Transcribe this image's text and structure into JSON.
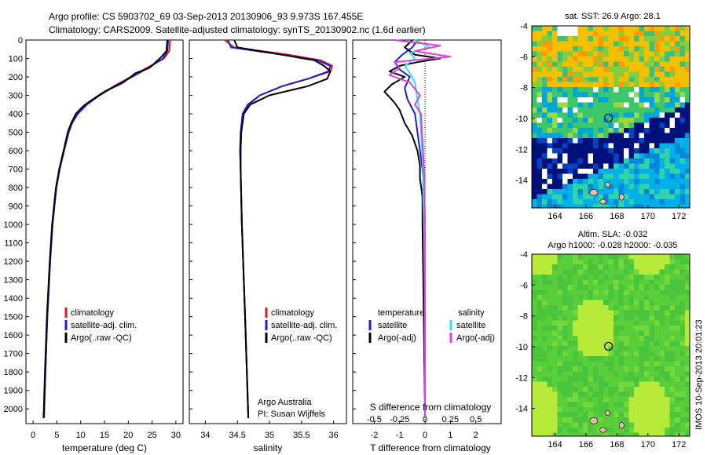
{
  "figure": {
    "title_line1": "Argo profile: CS 5903702_69 03-Sep-2013 20130906_93 9.973S 167.455E",
    "title_line2": "Climatology: CARS2009. Satellite-adjusted climatology: synTS_20130902.nc (1.6d earlier)",
    "credit_line1": "Argo Australia",
    "credit_line2": "PI: Susan Wijffels",
    "side_stamp": "IMOS 10-Sep-2013 20:01:23"
  },
  "colors": {
    "climatology": "#e31a1c",
    "satellite": "#1f1fd0",
    "argo": "#000000",
    "salinity_satellite": "#33e0e8",
    "salinity_argo": "#e040e0",
    "map_land": "#f0b8a8"
  },
  "chart_data": [
    {
      "type": "line",
      "id": "temperature",
      "xlabel": "temperature (deg C)",
      "ylabel": "",
      "xlim": [
        -1.5,
        31.5
      ],
      "ylim": [
        2080,
        0
      ],
      "xticks": [
        0,
        5,
        10,
        15,
        20,
        25,
        30
      ],
      "yticks": [
        0,
        100,
        200,
        300,
        400,
        500,
        600,
        700,
        800,
        900,
        1000,
        1100,
        1200,
        1300,
        1400,
        1500,
        1600,
        1700,
        1800,
        1900,
        2000
      ],
      "legend": [
        "climatology",
        "satellite-adj. clim.",
        "Argo(..raw -QC)"
      ],
      "legend_position": "lower-center",
      "series": [
        {
          "name": "climatology",
          "color": "#e31a1c",
          "depth": [
            0,
            60,
            100,
            150,
            200,
            250,
            300,
            350,
            400,
            450,
            500,
            600,
            700,
            800,
            1000,
            1200,
            1500,
            1800,
            2050
          ],
          "values": [
            28.8,
            28.6,
            27.5,
            24.0,
            20.5,
            17.0,
            13.8,
            11.2,
            9.3,
            8.2,
            7.5,
            6.5,
            5.6,
            4.9,
            4.1,
            3.6,
            3.0,
            2.6,
            2.3
          ]
        },
        {
          "name": "satellite-adj. clim.",
          "color": "#1f1fd0",
          "depth": [
            0,
            60,
            100,
            150,
            200,
            250,
            300,
            350,
            400,
            450,
            500,
            600,
            700,
            800,
            1000,
            1200,
            1500,
            1800,
            2050
          ],
          "values": [
            28.4,
            28.2,
            27.3,
            24.3,
            20.8,
            17.2,
            14.0,
            11.3,
            9.4,
            8.2,
            7.5,
            6.5,
            5.6,
            4.9,
            4.1,
            3.6,
            3.0,
            2.6,
            2.3
          ]
        },
        {
          "name": "Argo(..raw -QC)",
          "color": "#000000",
          "depth": [
            0,
            60,
            90,
            150,
            180,
            230,
            280,
            340,
            360,
            400,
            450,
            500,
            600,
            700,
            800,
            1000,
            1200,
            1500,
            1800,
            2050
          ],
          "values": [
            28.2,
            28.0,
            27.0,
            24.5,
            21.5,
            19.0,
            15.0,
            11.5,
            10.5,
            9.0,
            8.0,
            7.3,
            6.4,
            5.5,
            4.8,
            4.0,
            3.5,
            2.9,
            2.5,
            2.2
          ]
        }
      ]
    },
    {
      "type": "line",
      "id": "salinity",
      "xlabel": "salinity",
      "ylabel": "",
      "xlim": [
        33.75,
        36.2
      ],
      "ylim": [
        2080,
        0
      ],
      "xticks": [
        34,
        34.5,
        35,
        35.5,
        36
      ],
      "legend": [
        "climatology",
        "satellite-adj. clim.",
        "Argo(..raw -QC)"
      ],
      "legend_position": "lower-center",
      "series": [
        {
          "name": "climatology",
          "color": "#e31a1c",
          "depth": [
            0,
            40,
            80,
            110,
            140,
            170,
            210,
            250,
            300,
            350,
            400,
            500,
            600,
            700,
            1000,
            1500,
            2050
          ],
          "values": [
            34.3,
            34.45,
            35.3,
            35.8,
            35.98,
            35.95,
            35.6,
            35.2,
            34.85,
            34.68,
            34.6,
            34.56,
            34.55,
            34.55,
            34.57,
            34.62,
            34.67
          ]
        },
        {
          "name": "satellite-adj. clim.",
          "color": "#1f1fd0",
          "depth": [
            0,
            40,
            80,
            110,
            140,
            170,
            210,
            250,
            300,
            350,
            400,
            500,
            600,
            700,
            1000,
            1500,
            2050
          ],
          "values": [
            34.35,
            34.4,
            35.2,
            35.75,
            35.95,
            35.92,
            35.6,
            35.2,
            34.85,
            34.66,
            34.58,
            34.55,
            34.54,
            34.55,
            34.57,
            34.62,
            34.67
          ]
        },
        {
          "name": "Argo(..raw -QC)",
          "color": "#000000",
          "depth": [
            0,
            40,
            80,
            110,
            140,
            170,
            210,
            250,
            300,
            350,
            400,
            500,
            600,
            700,
            1000,
            1500,
            2050
          ],
          "values": [
            34.45,
            34.5,
            35.2,
            35.7,
            35.85,
            35.95,
            35.9,
            35.6,
            35.0,
            34.7,
            34.6,
            34.56,
            34.55,
            34.55,
            34.57,
            34.62,
            34.67
          ]
        }
      ]
    },
    {
      "type": "line",
      "id": "difference",
      "xlabel_top": "S difference from climatology",
      "xlabel": "T difference from climatology",
      "ylabel": "",
      "t_xlim": [
        -2.85,
        3.0
      ],
      "s_xlim": [
        -0.7125,
        0.75
      ],
      "ylim": [
        2080,
        0
      ],
      "t_xticks": [
        -2,
        -1,
        0,
        1,
        2
      ],
      "s_xticks": [
        -0.5,
        -0.25,
        0,
        0.25,
        0.5
      ],
      "legend_left_title": "temperature",
      "legend_right_title": "salinity",
      "legend_left": [
        "satellite",
        "Argo(-adj)"
      ],
      "legend_right": [
        "satellite",
        "Argo(-adj)"
      ],
      "series": [
        {
          "name": "temperature satellite",
          "axis": "T",
          "color": "#1f1fd0",
          "depth": [
            0,
            40,
            80,
            120,
            160,
            200,
            260,
            320,
            400,
            500,
            600,
            700,
            800,
            1000,
            1500,
            2050
          ],
          "values": [
            -0.3,
            -0.5,
            -0.9,
            -1.2,
            -1.0,
            -0.6,
            -0.8,
            -0.7,
            -0.4,
            -0.3,
            -0.2,
            -0.1,
            -0.05,
            -0.05,
            0,
            0
          ]
        },
        {
          "name": "temperature Argo(-adj)",
          "axis": "T",
          "color": "#000000",
          "depth": [
            0,
            40,
            80,
            100,
            120,
            140,
            170,
            200,
            240,
            280,
            340,
            380,
            450,
            520,
            600,
            680,
            750,
            850,
            1000,
            1500,
            2050
          ],
          "values": [
            -0.5,
            -0.8,
            -0.4,
            0.6,
            -0.3,
            -1.0,
            -1.4,
            -0.8,
            -1.3,
            -1.6,
            -1.2,
            -1.0,
            -0.8,
            -0.5,
            -0.3,
            -0.2,
            -0.2,
            -0.1,
            -0.1,
            -0.05,
            0
          ]
        },
        {
          "name": "salinity satellite",
          "axis": "S",
          "color": "#33e0e8",
          "depth": [
            0,
            40,
            70,
            100,
            140,
            180,
            230,
            300,
            400,
            500,
            600,
            700,
            800,
            1000,
            1500,
            2050
          ],
          "values": [
            -0.1,
            0.05,
            -0.15,
            -0.1,
            -0.2,
            -0.15,
            -0.1,
            -0.08,
            -0.05,
            -0.04,
            -0.03,
            -0.02,
            -0.02,
            -0.01,
            0,
            0
          ]
        },
        {
          "name": "salinity Argo(-adj)",
          "axis": "S",
          "color": "#e040e0",
          "depth": [
            0,
            30,
            60,
            90,
            120,
            150,
            190,
            230,
            300,
            350,
            400,
            500,
            600,
            700,
            1000,
            1500,
            2050
          ],
          "values": [
            -0.3,
            0.15,
            -0.1,
            0.25,
            -0.3,
            -0.25,
            -0.35,
            -0.15,
            -0.05,
            -0.1,
            -0.04,
            -0.03,
            -0.02,
            -0.01,
            0,
            0,
            0
          ]
        }
      ]
    },
    {
      "type": "heatmap",
      "id": "sst-map",
      "title": "sat. SST: 26.9  Argo: 28.1",
      "xlim": [
        162.5,
        172.7
      ],
      "ylim": [
        -15.8,
        -4
      ],
      "xticks": [
        164,
        166,
        168,
        170,
        172
      ],
      "yticks": [
        -4,
        -6,
        -8,
        -10,
        -12,
        -14
      ],
      "marker": {
        "lon": 167.455,
        "lat": -9.973
      }
    },
    {
      "type": "heatmap",
      "id": "sla-map",
      "title_line1": "Altim. SLA: -0.032",
      "title_line2": "Argo h1000: -0.028 h2000: -0.035",
      "xlim": [
        162.5,
        172.7
      ],
      "ylim": [
        -15.8,
        -4
      ],
      "xticks": [
        164,
        166,
        168,
        170,
        172
      ],
      "yticks": [
        -4,
        -6,
        -8,
        -10,
        -12,
        -14
      ],
      "marker": {
        "lon": 167.455,
        "lat": -9.973
      }
    }
  ]
}
